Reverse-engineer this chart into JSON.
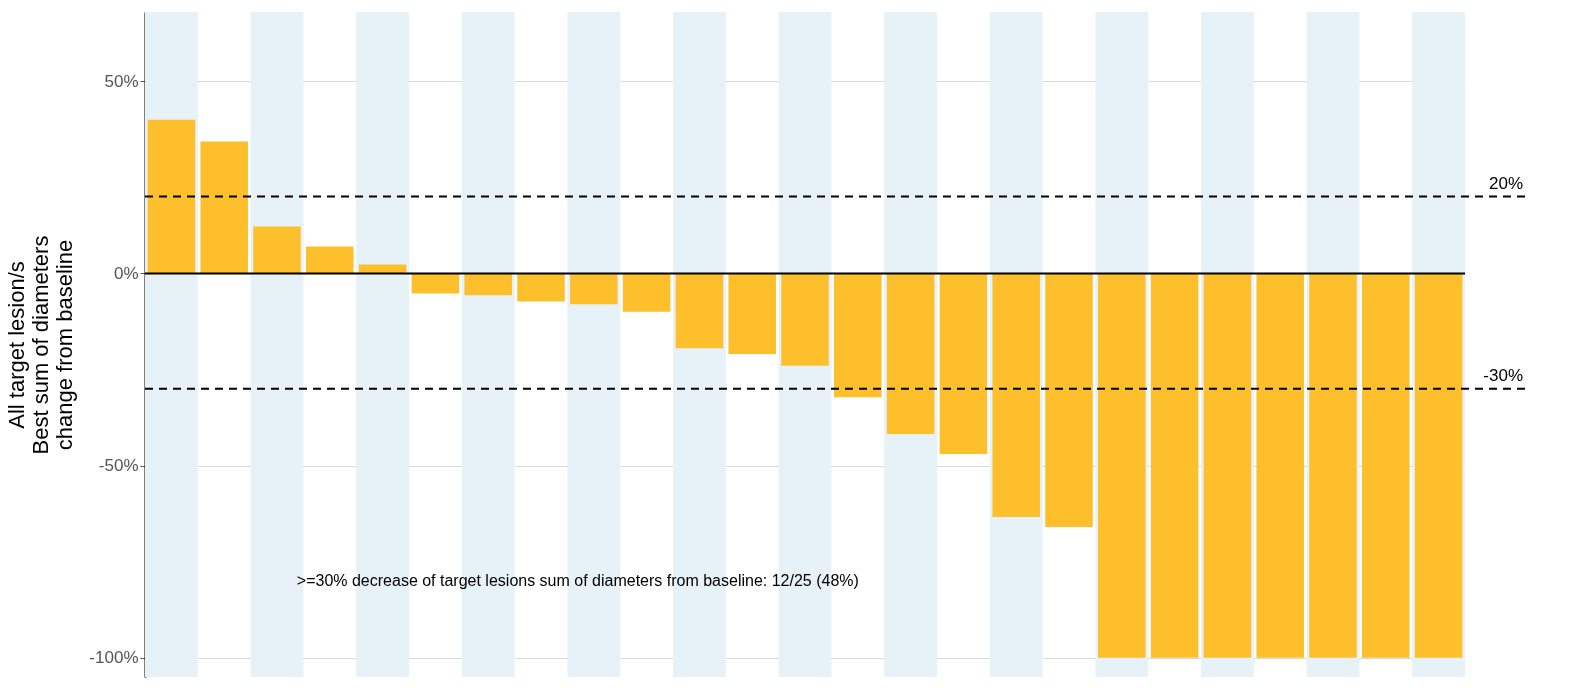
{
  "chart_data": {
    "type": "bar",
    "ylabel": "All target lesion/s\nBest sum of diameters\nchange from baseline",
    "categories": [
      null,
      null,
      null,
      null,
      null,
      null,
      null,
      null,
      null,
      null,
      null,
      null,
      null,
      null,
      null,
      null,
      null,
      null,
      null,
      null,
      null,
      null,
      null,
      null,
      null
    ],
    "series": [
      {
        "color": "#fdbf2b",
        "values": [
          40,
          34.3,
          12.2,
          7,
          2.3,
          -5.2,
          -5.7,
          -7.3,
          -8,
          -10,
          -19.5,
          -21,
          -24,
          -32.2,
          -41.8,
          -47,
          -63.4,
          -66,
          -100,
          -100,
          -100,
          -100,
          -100,
          -100,
          -100
        ]
      }
    ],
    "ylim": [
      -105,
      68
    ],
    "yticks": [
      {
        "value": 50,
        "label": "50%"
      },
      {
        "value": 0,
        "label": "0%"
      },
      {
        "value": -50,
        "label": "-50%"
      },
      {
        "value": -100,
        "label": "-100%"
      }
    ],
    "grid": "y",
    "tick_labels": "y",
    "ref_lines": [
      {
        "axis": "y",
        "value": 20,
        "label": "20%",
        "line_style": "dashed",
        "color": "#000000"
      },
      {
        "axis": "y",
        "value": -30,
        "label": "-30%",
        "line_style": "dashed",
        "color": "#000000"
      },
      {
        "axis": "y",
        "value": 0,
        "label": null,
        "line_style": "solid",
        "color": "#000000"
      }
    ],
    "annotations": [
      ">=30% decrease of target lesions sum of diameters from baseline: 12/25 (48%)"
    ]
  }
}
